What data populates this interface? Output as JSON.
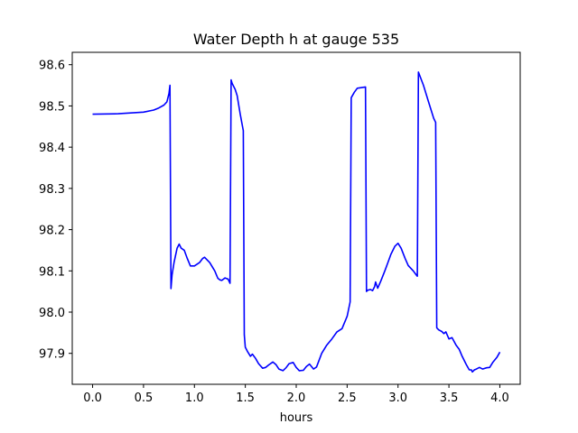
{
  "chart_data": {
    "type": "line",
    "title": "Water Depth h at gauge 535",
    "xlabel": "hours",
    "ylabel": "",
    "xlim": [
      -0.2,
      4.2
    ],
    "ylim": [
      97.825,
      98.63
    ],
    "xticks": [
      0.0,
      0.5,
      1.0,
      1.5,
      2.0,
      2.5,
      3.0,
      3.5,
      4.0
    ],
    "xtick_labels": [
      "0.0",
      "0.5",
      "1.0",
      "1.5",
      "2.0",
      "2.5",
      "3.0",
      "3.5",
      "4.0"
    ],
    "yticks": [
      97.9,
      98.0,
      98.1,
      98.2,
      98.3,
      98.4,
      98.5,
      98.6
    ],
    "ytick_labels": [
      "97.9",
      "98.0",
      "98.1",
      "98.2",
      "98.3",
      "98.4",
      "98.5",
      "98.6"
    ],
    "grid": false,
    "series": [
      {
        "color": "#0000ff",
        "x": [
          0.0,
          0.25,
          0.5,
          0.6,
          0.65,
          0.7,
          0.73,
          0.75,
          0.76,
          0.77,
          0.78,
          0.8,
          0.83,
          0.85,
          0.87,
          0.9,
          0.93,
          0.96,
          1.0,
          1.05,
          1.08,
          1.1,
          1.15,
          1.2,
          1.23,
          1.25,
          1.27,
          1.3,
          1.33,
          1.35,
          1.36,
          1.37,
          1.4,
          1.42,
          1.45,
          1.48,
          1.49,
          1.5,
          1.52,
          1.55,
          1.57,
          1.6,
          1.63,
          1.67,
          1.7,
          1.73,
          1.77,
          1.8,
          1.83,
          1.87,
          1.9,
          1.93,
          1.97,
          2.0,
          2.03,
          2.07,
          2.1,
          2.13,
          2.17,
          2.2,
          2.25,
          2.3,
          2.35,
          2.4,
          2.45,
          2.5,
          2.53,
          2.54,
          2.57,
          2.6,
          2.65,
          2.68,
          2.69,
          2.7,
          2.73,
          2.75,
          2.77,
          2.78,
          2.8,
          2.83,
          2.87,
          2.9,
          2.93,
          2.97,
          3.0,
          3.03,
          3.07,
          3.1,
          3.15,
          3.18,
          3.19,
          3.2,
          3.25,
          3.3,
          3.35,
          3.37,
          3.38,
          3.4,
          3.43,
          3.45,
          3.47,
          3.5,
          3.53,
          3.57,
          3.6,
          3.63,
          3.67,
          3.7,
          3.72,
          3.73,
          3.75,
          3.77,
          3.8,
          3.83,
          3.87,
          3.9,
          3.93,
          3.97,
          4.0
        ],
        "y": [
          98.48,
          98.481,
          98.485,
          98.49,
          98.495,
          98.502,
          98.51,
          98.53,
          98.55,
          98.057,
          98.09,
          98.12,
          98.155,
          98.165,
          98.155,
          98.15,
          98.13,
          98.112,
          98.112,
          98.12,
          98.13,
          98.133,
          98.12,
          98.1,
          98.082,
          98.078,
          98.077,
          98.083,
          98.08,
          98.07,
          98.563,
          98.555,
          98.54,
          98.525,
          98.48,
          98.44,
          97.945,
          97.915,
          97.905,
          97.893,
          97.898,
          97.888,
          97.875,
          97.864,
          97.866,
          97.872,
          97.879,
          97.873,
          97.862,
          97.858,
          97.865,
          97.875,
          97.878,
          97.866,
          97.858,
          97.859,
          97.868,
          97.874,
          97.862,
          97.867,
          97.9,
          97.92,
          97.935,
          97.952,
          97.96,
          97.99,
          98.025,
          98.52,
          98.533,
          98.543,
          98.545,
          98.546,
          98.05,
          98.053,
          98.055,
          98.052,
          98.062,
          98.073,
          98.058,
          98.075,
          98.1,
          98.12,
          98.14,
          98.16,
          98.167,
          98.155,
          98.13,
          98.113,
          98.1,
          98.09,
          98.087,
          98.582,
          98.55,
          98.51,
          98.47,
          98.46,
          97.962,
          97.957,
          97.953,
          97.948,
          97.952,
          97.935,
          97.938,
          97.92,
          97.91,
          97.893,
          97.873,
          97.86,
          97.86,
          97.855,
          97.86,
          97.862,
          97.866,
          97.862,
          97.865,
          97.866,
          97.878,
          97.89,
          97.903
        ]
      }
    ]
  }
}
